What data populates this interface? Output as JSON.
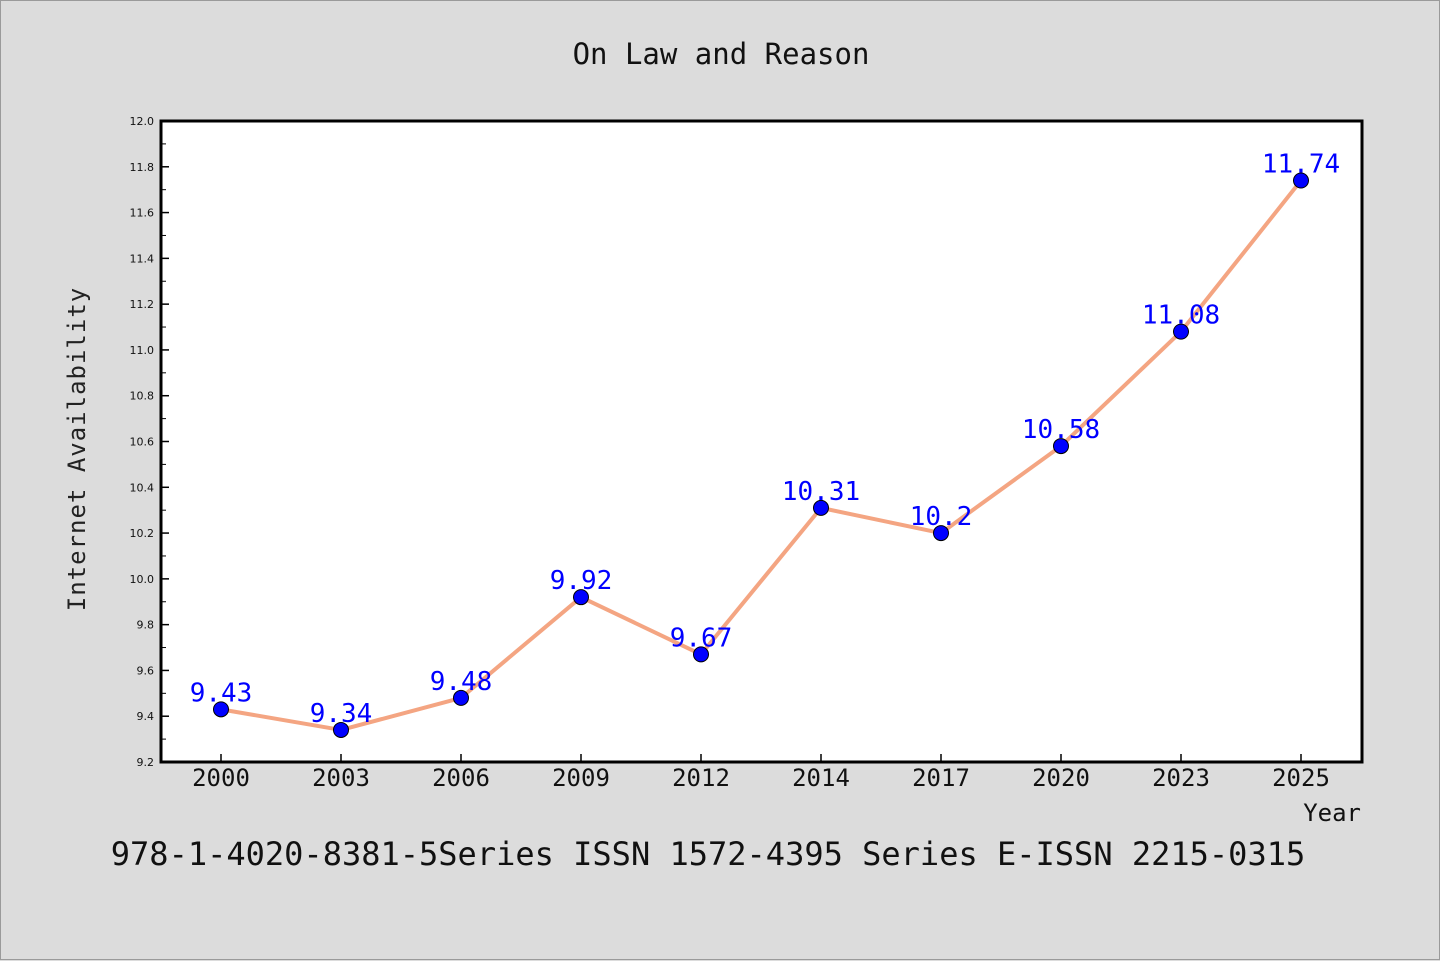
{
  "chart_data": {
    "type": "line",
    "title": "On Law and Reason",
    "xlabel": "Year",
    "ylabel": "Internet Availability",
    "categories": [
      "2000",
      "2003",
      "2006",
      "2009",
      "2012",
      "2014",
      "2017",
      "2020",
      "2023",
      "2025"
    ],
    "values": [
      9.43,
      9.34,
      9.48,
      9.92,
      9.67,
      10.31,
      10.2,
      10.58,
      11.08,
      11.74
    ],
    "data_labels": [
      "9.43",
      "9.34",
      "9.48",
      "9.92",
      "9.67",
      "10.31",
      "10.2",
      "10.58",
      "11.08",
      "11.74"
    ],
    "ylim": [
      9.2,
      12.0
    ],
    "yticks": [
      "9.2",
      "9.4",
      "9.6",
      "9.8",
      "10.0",
      "10.2",
      "10.4",
      "10.6",
      "10.8",
      "11.0",
      "11.2",
      "11.4",
      "11.6",
      "11.8",
      "12.0"
    ],
    "grid": false,
    "colors": {
      "line": "#f4a582",
      "marker": "#0000ff",
      "data_label": "#0000ff",
      "background": "#dcdcdc",
      "plot_background": "#ffffff"
    }
  },
  "footer": "978-1-4020-8381-5Series ISSN 1572-4395 Series E-ISSN 2215-0315"
}
